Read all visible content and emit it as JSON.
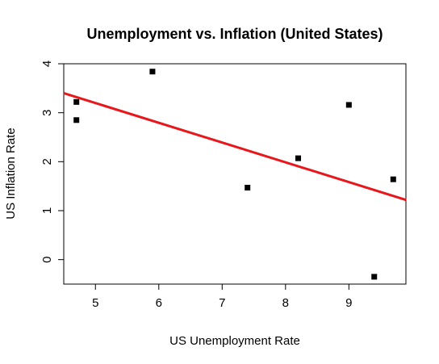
{
  "chart_data": {
    "type": "scatter",
    "title": "Unemployment vs. Inflation (United States)",
    "xlabel": "US Unemployment Rate",
    "ylabel": "US Inflation Rate",
    "xlim": [
      4.5,
      9.9
    ],
    "ylim": [
      -0.5,
      4.0
    ],
    "xticks": [
      5,
      6,
      7,
      8,
      9
    ],
    "yticks": [
      0,
      1,
      2,
      3,
      4
    ],
    "grid": false,
    "series": [
      {
        "points": [
          {
            "x": 4.7,
            "y": 3.22
          },
          {
            "x": 4.7,
            "y": 2.85
          },
          {
            "x": 5.9,
            "y": 3.84
          },
          {
            "x": 7.4,
            "y": 1.47
          },
          {
            "x": 8.2,
            "y": 2.07
          },
          {
            "x": 9.0,
            "y": 3.16
          },
          {
            "x": 9.4,
            "y": -0.35
          },
          {
            "x": 9.7,
            "y": 1.64
          }
        ],
        "marker": "square",
        "color": "#000000"
      }
    ],
    "fit_line": {
      "type": "linear",
      "color": "#e8171b",
      "x": [
        4.5,
        9.9
      ],
      "y": [
        3.4,
        1.22
      ]
    }
  }
}
